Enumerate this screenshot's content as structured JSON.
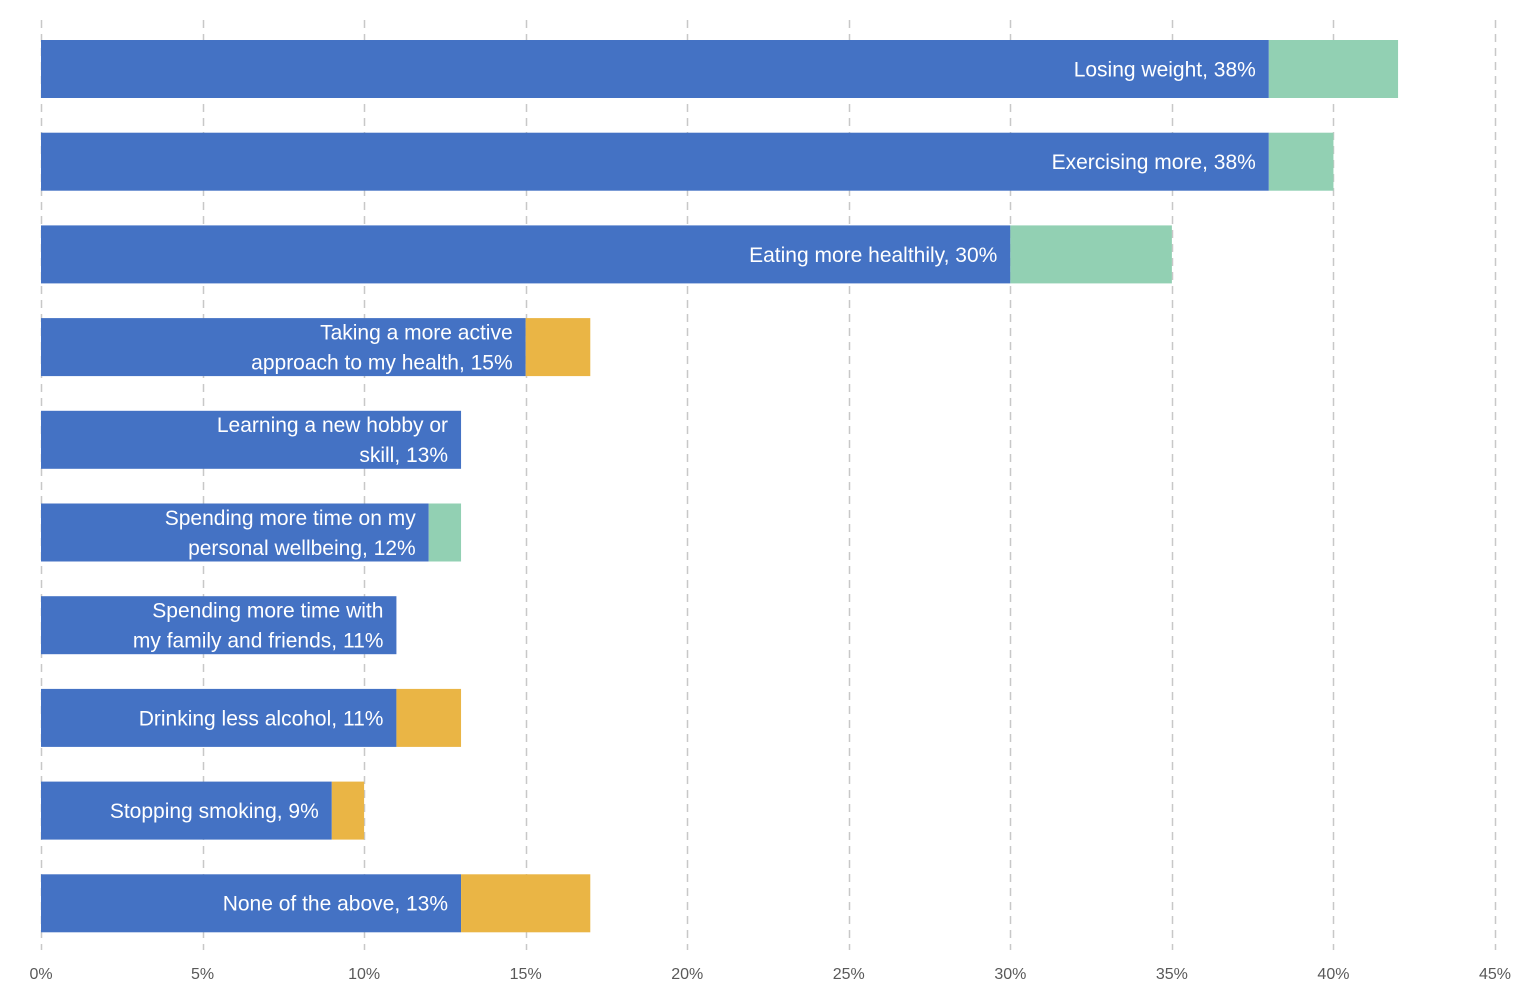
{
  "chart_data": {
    "type": "bar",
    "orientation": "horizontal",
    "stacked": true,
    "xlim": [
      0,
      45
    ],
    "x_ticks": [
      0,
      5,
      10,
      15,
      20,
      25,
      30,
      35,
      40,
      45
    ],
    "x_tick_labels": [
      "0%",
      "5%",
      "10%",
      "15%",
      "20%",
      "25%",
      "30%",
      "35%",
      "40%",
      "45%"
    ],
    "grid": "vertical dashed",
    "legend": "none",
    "colors": {
      "primary": "#4472C4",
      "green": "#92D0B3",
      "orange": "#EAB545",
      "grid": "#C8C8C8",
      "tick_text": "#595959"
    },
    "bars": [
      {
        "label_lines": [
          "Losing weight, 38%"
        ],
        "value": 38,
        "extra": 4,
        "extra_color": "green"
      },
      {
        "label_lines": [
          "Exercising more, 38%"
        ],
        "value": 38,
        "extra": 2,
        "extra_color": "green"
      },
      {
        "label_lines": [
          "Eating more healthily, 30%"
        ],
        "value": 30,
        "extra": 5,
        "extra_color": "green"
      },
      {
        "label_lines": [
          "Taking a more active",
          "approach to my health, 15%"
        ],
        "value": 15,
        "extra": 2,
        "extra_color": "orange"
      },
      {
        "label_lines": [
          "Learning a new hobby or",
          "skill, 13%"
        ],
        "value": 13,
        "extra": 0,
        "extra_color": ""
      },
      {
        "label_lines": [
          "Spending more time on my",
          "personal wellbeing, 12%"
        ],
        "value": 12,
        "extra": 1,
        "extra_color": "green"
      },
      {
        "label_lines": [
          "Spending more time with",
          "my family and friends, 11%"
        ],
        "value": 11,
        "extra": 0,
        "extra_color": ""
      },
      {
        "label_lines": [
          "Drinking less alcohol, 11%"
        ],
        "value": 11,
        "extra": 2,
        "extra_color": "orange"
      },
      {
        "label_lines": [
          "Stopping smoking, 9%"
        ],
        "value": 9,
        "extra": 1,
        "extra_color": "orange"
      },
      {
        "label_lines": [
          "None of the above, 13%"
        ],
        "value": 13,
        "extra": 4,
        "extra_color": "orange"
      }
    ]
  }
}
